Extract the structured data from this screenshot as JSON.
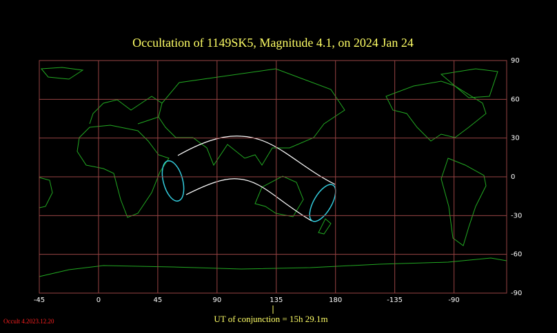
{
  "title": "Occultation  of  1149SK5,      Magnitude 4.1,   on  2024 Jan 24",
  "map": {
    "xlim": [
      -45,
      310
    ],
    "ylim": [
      -90,
      90
    ],
    "xticks": [
      -45,
      0,
      45,
      90,
      135,
      180,
      {
        "value": 225,
        "label": "-135"
      },
      {
        "value": 270,
        "label": "-90"
      }
    ],
    "yticks": [
      90,
      60,
      30,
      0,
      -30,
      -60,
      -90
    ]
  },
  "conjunction": "UT of conjunction = 15h 29.1m",
  "version": "Occult 4.2023.12.20"
}
